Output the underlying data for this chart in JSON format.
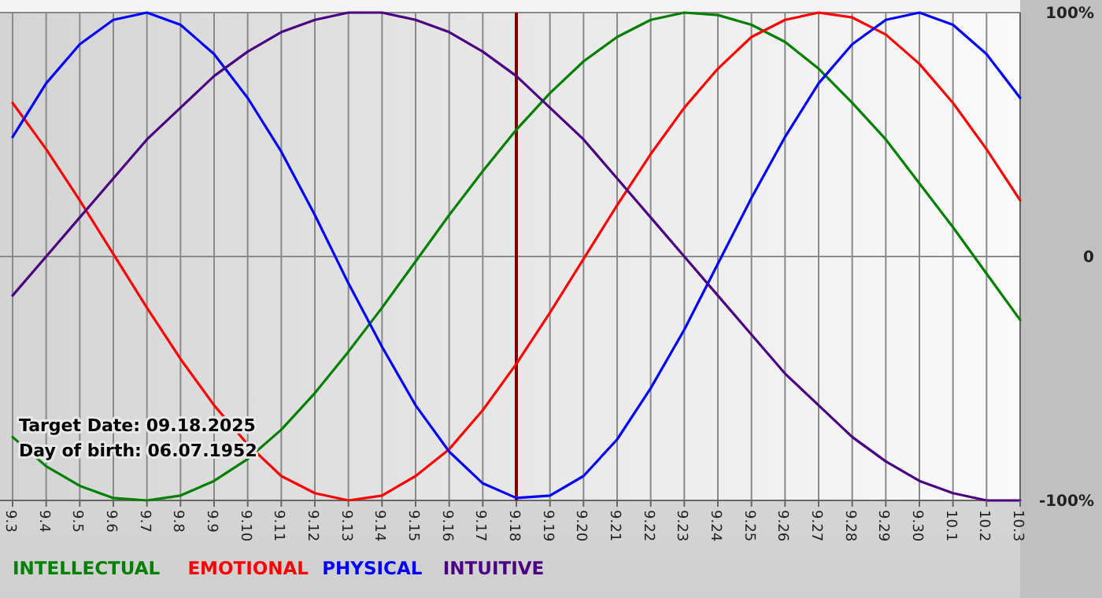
{
  "chart_data": {
    "type": "line",
    "categories": [
      "9.3",
      "9.4",
      "9.5",
      "9.6",
      "9.7",
      "9.8",
      "9.9",
      "9.10",
      "9.11",
      "9.12",
      "9.13",
      "9.14",
      "9.15",
      "9.16",
      "9.17",
      "9.18",
      "9.19",
      "9.20",
      "9.21",
      "9.22",
      "9.23",
      "9.24",
      "9.25",
      "9.26",
      "9.27",
      "9.28",
      "9.29",
      "9.30",
      "10.1",
      "10.2",
      "10.3"
    ],
    "series": [
      {
        "name": "INTELLECTUAL",
        "color": "#008000",
        "values": [
          -74,
          -86,
          -94,
          -99,
          -100,
          -98,
          -92,
          -83,
          -71,
          -56,
          -39,
          -21,
          -2,
          17,
          35,
          52,
          67,
          80,
          90,
          97,
          100,
          99,
          95,
          88,
          77,
          63,
          48,
          30,
          12,
          -7,
          -26
        ]
      },
      {
        "name": "EMOTIONAL",
        "color": "#ff0000",
        "values": [
          63,
          44,
          23,
          1,
          -21,
          -42,
          -61,
          -77,
          -90,
          -97,
          -100,
          -98,
          -90,
          -79,
          -63,
          -44,
          -23,
          -1,
          21,
          42,
          61,
          77,
          90,
          97,
          100,
          98,
          91,
          79,
          63,
          44,
          23
        ]
      },
      {
        "name": "PHYSICAL",
        "color": "#0000ff",
        "values": [
          49,
          71,
          87,
          97,
          100,
          95,
          83,
          65,
          43,
          17,
          -11,
          -37,
          -61,
          -80,
          -93,
          -99,
          -98,
          -90,
          -75,
          -54,
          -30,
          -3,
          24,
          49,
          71,
          87,
          97,
          100,
          95,
          83,
          65
        ]
      },
      {
        "name": "INTUITIVE",
        "color": "#4b0082",
        "values": [
          -16,
          0,
          16,
          32,
          48,
          61,
          74,
          84,
          92,
          97,
          100,
          100,
          97,
          92,
          84,
          74,
          61,
          48,
          32,
          16,
          0,
          -16,
          -32,
          -48,
          -61,
          -74,
          -84,
          -92,
          -97,
          -100,
          -100
        ]
      }
    ],
    "ylim": [
      -100,
      100
    ],
    "yticks": [
      {
        "value": 100,
        "label": "100%"
      },
      0,
      {
        "value": -100,
        "label": "-100%"
      }
    ],
    "grid": true,
    "legend": "bottom",
    "marker": "none",
    "line_style": "solid",
    "ref_lines": [
      {
        "axis": "x",
        "value": "9.18",
        "color": "#800000"
      }
    ],
    "annotations": [
      "Target Date: 09.18.2025",
      "Day of birth: 06.07.1952"
    ]
  }
}
